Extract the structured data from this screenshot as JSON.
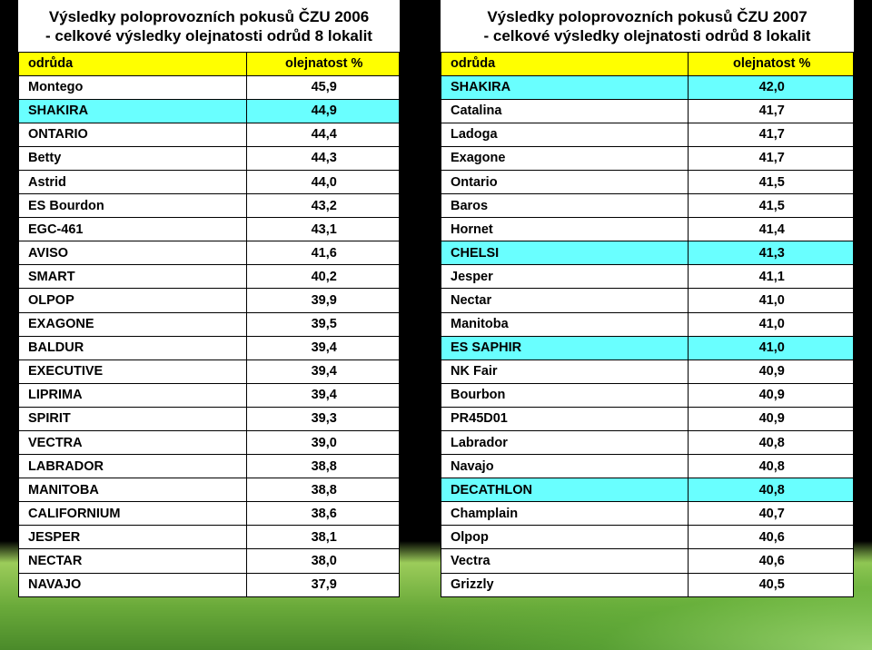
{
  "left": {
    "title_line1": "Výsledky poloprovozních pokusů ČZU 2006",
    "title_line2": "- celkové výsledky olejnatosti odrůd 8 lokalit",
    "col1": "odrůda",
    "col2": "olejnatost %",
    "rows": [
      {
        "name": "Montego",
        "val": "45,9",
        "hl": false
      },
      {
        "name": "SHAKIRA",
        "val": "44,9",
        "hl": true
      },
      {
        "name": "ONTARIO",
        "val": "44,4",
        "hl": false
      },
      {
        "name": "Betty",
        "val": "44,3",
        "hl": false
      },
      {
        "name": "Astrid",
        "val": "44,0",
        "hl": false
      },
      {
        "name": "ES Bourdon",
        "val": "43,2",
        "hl": false
      },
      {
        "name": "EGC-461",
        "val": "43,1",
        "hl": false
      },
      {
        "name": "AVISO",
        "val": "41,6",
        "hl": false
      },
      {
        "name": "SMART",
        "val": "40,2",
        "hl": false
      },
      {
        "name": "OLPOP",
        "val": "39,9",
        "hl": false
      },
      {
        "name": "EXAGONE",
        "val": "39,5",
        "hl": false
      },
      {
        "name": "BALDUR",
        "val": "39,4",
        "hl": false
      },
      {
        "name": "EXECUTIVE",
        "val": "39,4",
        "hl": false
      },
      {
        "name": "LIPRIMA",
        "val": "39,4",
        "hl": false
      },
      {
        "name": "SPIRIT",
        "val": "39,3",
        "hl": false
      },
      {
        "name": "VECTRA",
        "val": "39,0",
        "hl": false
      },
      {
        "name": "LABRADOR",
        "val": "38,8",
        "hl": false
      },
      {
        "name": "MANITOBA",
        "val": "38,8",
        "hl": false
      },
      {
        "name": "CALIFORNIUM",
        "val": "38,6",
        "hl": false
      },
      {
        "name": "JESPER",
        "val": "38,1",
        "hl": false
      },
      {
        "name": "NECTAR",
        "val": "38,0",
        "hl": false
      },
      {
        "name": "NAVAJO",
        "val": "37,9",
        "hl": false
      }
    ]
  },
  "right": {
    "title_line1": "Výsledky poloprovozních pokusů ČZU 2007",
    "title_line2": "- celkové výsledky olejnatosti odrůd 8 lokalit",
    "col1": "odrůda",
    "col2": "olejnatost %",
    "rows": [
      {
        "name": "SHAKIRA",
        "val": "42,0",
        "hl": true
      },
      {
        "name": "Catalina",
        "val": "41,7",
        "hl": false
      },
      {
        "name": "Ladoga",
        "val": "41,7",
        "hl": false
      },
      {
        "name": "Exagone",
        "val": "41,7",
        "hl": false
      },
      {
        "name": "Ontario",
        "val": "41,5",
        "hl": false
      },
      {
        "name": "Baros",
        "val": "41,5",
        "hl": false
      },
      {
        "name": "Hornet",
        "val": "41,4",
        "hl": false
      },
      {
        "name": "CHELSI",
        "val": "41,3",
        "hl": true
      },
      {
        "name": "Jesper",
        "val": "41,1",
        "hl": false
      },
      {
        "name": "Nectar",
        "val": "41,0",
        "hl": false
      },
      {
        "name": "Manitoba",
        "val": "41,0",
        "hl": false
      },
      {
        "name": "ES SAPHIR",
        "val": "41,0",
        "hl": true
      },
      {
        "name": "NK Fair",
        "val": "40,9",
        "hl": false
      },
      {
        "name": "Bourbon",
        "val": "40,9",
        "hl": false
      },
      {
        "name": "PR45D01",
        "val": "40,9",
        "hl": false
      },
      {
        "name": "Labrador",
        "val": "40,8",
        "hl": false
      },
      {
        "name": "Navajo",
        "val": "40,8",
        "hl": false
      },
      {
        "name": "DECATHLON",
        "val": "40,8",
        "hl": true
      },
      {
        "name": "Champlain",
        "val": "40,7",
        "hl": false
      },
      {
        "name": "Olpop",
        "val": "40,6",
        "hl": false
      },
      {
        "name": "Vectra",
        "val": "40,6",
        "hl": false
      },
      {
        "name": "Grizzly",
        "val": "40,5",
        "hl": false
      }
    ]
  },
  "colors": {
    "header_bg": "#ffff00",
    "highlight_bg": "#69ffff",
    "border": "#000000",
    "background": "#000000"
  }
}
